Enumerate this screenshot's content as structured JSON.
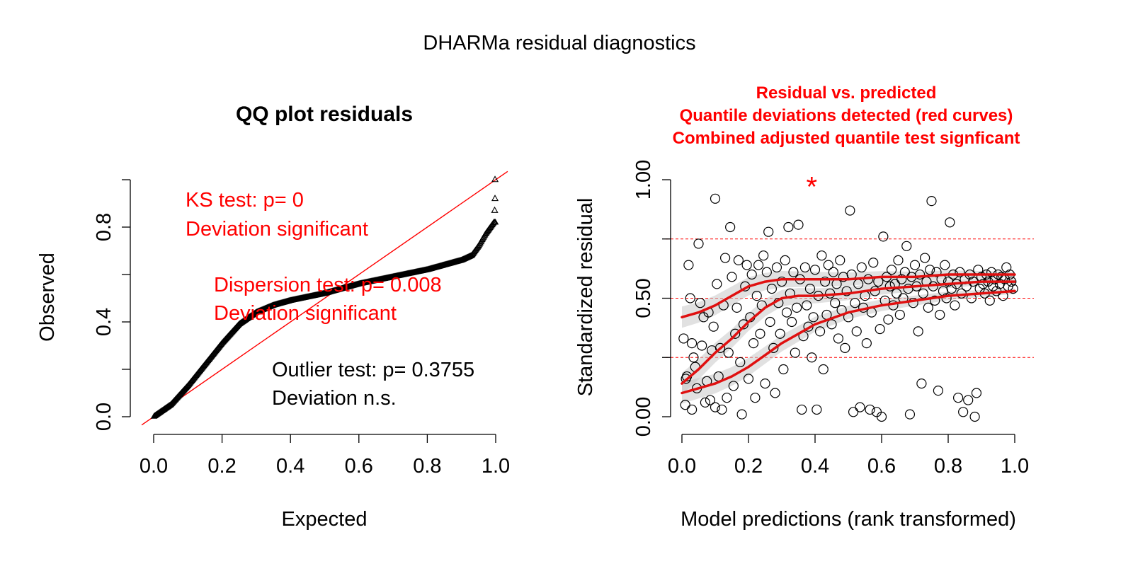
{
  "page": {
    "title": "DHARMa residual diagnostics"
  },
  "colors": {
    "axis": "#000000",
    "red": "#ff0000",
    "curve_red": "#e01010",
    "band_gray": "#c8c8c8",
    "point": "#000000"
  },
  "chart_data": [
    {
      "type": "scatter",
      "title": "QQ plot residuals",
      "xlabel": "Expected",
      "ylabel": "Observed",
      "xlim": [
        0,
        1
      ],
      "ylim": [
        0,
        1
      ],
      "xticks": [
        "0.0",
        "0.2",
        "0.4",
        "0.6",
        "0.8",
        "1.0"
      ],
      "xtick_values": [
        0,
        0.2,
        0.4,
        0.6,
        0.8,
        1.0
      ],
      "yticks": [
        "0.0",
        "0.4",
        "0.8"
      ],
      "yminor_values": [
        0.2,
        0.6,
        1.0
      ],
      "ytick_values": [
        0,
        0.4,
        0.8
      ],
      "marker": "triangle-open",
      "reference_line": {
        "from": [
          0,
          0
        ],
        "to": [
          1,
          1
        ]
      },
      "qq_profile": {
        "expected": [
          0,
          0.02,
          0.05,
          0.1,
          0.15,
          0.2,
          0.25,
          0.3,
          0.35,
          0.4,
          0.5,
          0.6,
          0.7,
          0.8,
          0.9,
          0.93,
          0.95,
          0.97,
          0.985,
          0.995
        ],
        "observed": [
          0,
          0.02,
          0.05,
          0.13,
          0.22,
          0.31,
          0.39,
          0.44,
          0.47,
          0.49,
          0.52,
          0.56,
          0.59,
          0.62,
          0.66,
          0.68,
          0.72,
          0.77,
          0.8,
          0.82
        ]
      },
      "outlier_points": [
        {
          "x": 0.998,
          "y": 1.0
        },
        {
          "x": 0.998,
          "y": 0.92
        },
        {
          "x": 0.997,
          "y": 0.87
        }
      ],
      "annotations": {
        "ks_line1": "KS test: p= 0",
        "ks_line2": "Deviation  significant",
        "disp_line1": "Dispersion test: p= 0.008",
        "disp_line2": "Deviation  significant",
        "outlier_line1": "Outlier test: p= 0.3755",
        "outlier_line2": "Deviation  n.s."
      }
    },
    {
      "type": "scatter",
      "title_lines": [
        "Residual vs. predicted",
        "Quantile deviations detected (red curves)",
        "Combined adjusted quantile test signficant"
      ],
      "xlabel": "Model predictions (rank transformed)",
      "ylabel": "Standardized residual",
      "xlim": [
        0,
        1
      ],
      "ylim": [
        0,
        1
      ],
      "xticks": [
        "0.0",
        "0.2",
        "0.4",
        "0.6",
        "0.8",
        "1.0"
      ],
      "xtick_values": [
        0,
        0.2,
        0.4,
        0.6,
        0.8,
        1.0
      ],
      "yticks": [
        "0.00",
        "0.50",
        "1.00"
      ],
      "ytick_values": [
        0,
        0.5,
        1.0
      ],
      "yminor_values": [
        0.25,
        0.75
      ],
      "reference_hlines": [
        0.25,
        0.5,
        0.75
      ],
      "marker": "circle-open",
      "outlier_marker": {
        "x": 0.39,
        "y": 0.99,
        "symbol": "*"
      },
      "quantile_curves": {
        "x": [
          0,
          0.05,
          0.1,
          0.15,
          0.2,
          0.25,
          0.3,
          0.35,
          0.4,
          0.5,
          0.6,
          0.7,
          0.8,
          0.9,
          1.0
        ],
        "q25": [
          0.1,
          0.12,
          0.14,
          0.17,
          0.21,
          0.26,
          0.31,
          0.35,
          0.39,
          0.44,
          0.47,
          0.49,
          0.51,
          0.52,
          0.53
        ],
        "q50": [
          0.14,
          0.2,
          0.27,
          0.33,
          0.4,
          0.46,
          0.5,
          0.51,
          0.51,
          0.52,
          0.54,
          0.55,
          0.56,
          0.57,
          0.57
        ],
        "q75": [
          0.42,
          0.44,
          0.47,
          0.51,
          0.55,
          0.57,
          0.58,
          0.58,
          0.58,
          0.58,
          0.59,
          0.59,
          0.6,
          0.6,
          0.6
        ]
      },
      "points": [
        [
          0.005,
          0.33
        ],
        [
          0.01,
          0.05
        ],
        [
          0.012,
          0.16
        ],
        [
          0.015,
          0.17
        ],
        [
          0.02,
          0.64
        ],
        [
          0.025,
          0.5
        ],
        [
          0.03,
          0.03
        ],
        [
          0.03,
          0.31
        ],
        [
          0.035,
          0.25
        ],
        [
          0.04,
          0.21
        ],
        [
          0.045,
          0.12
        ],
        [
          0.05,
          0.73
        ],
        [
          0.055,
          0.48
        ],
        [
          0.06,
          0.3
        ],
        [
          0.065,
          0.42
        ],
        [
          0.07,
          0.06
        ],
        [
          0.075,
          0.15
        ],
        [
          0.08,
          0.44
        ],
        [
          0.085,
          0.07
        ],
        [
          0.09,
          0.28
        ],
        [
          0.095,
          0.38
        ],
        [
          0.1,
          0.92
        ],
        [
          0.1,
          0.04
        ],
        [
          0.105,
          0.56
        ],
        [
          0.11,
          0.17
        ],
        [
          0.115,
          0.29
        ],
        [
          0.12,
          0.03
        ],
        [
          0.125,
          0.47
        ],
        [
          0.13,
          0.67
        ],
        [
          0.135,
          0.08
        ],
        [
          0.14,
          0.27
        ],
        [
          0.145,
          0.8
        ],
        [
          0.15,
          0.59
        ],
        [
          0.155,
          0.13
        ],
        [
          0.16,
          0.35
        ],
        [
          0.165,
          0.46
        ],
        [
          0.17,
          0.66
        ],
        [
          0.175,
          0.23
        ],
        [
          0.18,
          0.01
        ],
        [
          0.185,
          0.39
        ],
        [
          0.19,
          0.55
        ],
        [
          0.195,
          0.64
        ],
        [
          0.2,
          0.16
        ],
        [
          0.205,
          0.42
        ],
        [
          0.21,
          0.6
        ],
        [
          0.215,
          0.31
        ],
        [
          0.22,
          0.08
        ],
        [
          0.225,
          0.51
        ],
        [
          0.23,
          0.64
        ],
        [
          0.235,
          0.35
        ],
        [
          0.24,
          0.47
        ],
        [
          0.245,
          0.68
        ],
        [
          0.25,
          0.14
        ],
        [
          0.255,
          0.61
        ],
        [
          0.26,
          0.78
        ],
        [
          0.265,
          0.4
        ],
        [
          0.27,
          0.54
        ],
        [
          0.275,
          0.29
        ],
        [
          0.28,
          0.1
        ],
        [
          0.285,
          0.63
        ],
        [
          0.29,
          0.48
        ],
        [
          0.295,
          0.35
        ],
        [
          0.3,
          0.57
        ],
        [
          0.305,
          0.2
        ],
        [
          0.31,
          0.66
        ],
        [
          0.315,
          0.44
        ],
        [
          0.32,
          0.8
        ],
        [
          0.325,
          0.52
        ],
        [
          0.33,
          0.4
        ],
        [
          0.335,
          0.61
        ],
        [
          0.34,
          0.27
        ],
        [
          0.345,
          0.46
        ],
        [
          0.35,
          0.81
        ],
        [
          0.355,
          0.58
        ],
        [
          0.36,
          0.03
        ],
        [
          0.365,
          0.34
        ],
        [
          0.37,
          0.63
        ],
        [
          0.375,
          0.47
        ],
        [
          0.38,
          0.38
        ],
        [
          0.385,
          0.54
        ],
        [
          0.39,
          0.25
        ],
        [
          0.395,
          0.42
        ],
        [
          0.4,
          0.62
        ],
        [
          0.405,
          0.03
        ],
        [
          0.41,
          0.51
        ],
        [
          0.415,
          0.36
        ],
        [
          0.42,
          0.68
        ],
        [
          0.425,
          0.2
        ],
        [
          0.43,
          0.57
        ],
        [
          0.435,
          0.43
        ],
        [
          0.44,
          0.64
        ],
        [
          0.445,
          0.52
        ],
        [
          0.45,
          0.39
        ],
        [
          0.455,
          0.61
        ],
        [
          0.46,
          0.48
        ],
        [
          0.465,
          0.56
        ],
        [
          0.47,
          0.33
        ],
        [
          0.475,
          0.66
        ],
        [
          0.48,
          0.45
        ],
        [
          0.485,
          0.59
        ],
        [
          0.49,
          0.29
        ],
        [
          0.495,
          0.53
        ],
        [
          0.5,
          0.42
        ],
        [
          0.505,
          0.87
        ],
        [
          0.51,
          0.6
        ],
        [
          0.515,
          0.02
        ],
        [
          0.52,
          0.48
        ],
        [
          0.525,
          0.36
        ],
        [
          0.53,
          0.56
        ],
        [
          0.535,
          0.04
        ],
        [
          0.54,
          0.63
        ],
        [
          0.545,
          0.46
        ],
        [
          0.55,
          0.51
        ],
        [
          0.555,
          0.31
        ],
        [
          0.56,
          0.58
        ],
        [
          0.565,
          0.03
        ],
        [
          0.57,
          0.44
        ],
        [
          0.575,
          0.65
        ],
        [
          0.58,
          0.53
        ],
        [
          0.585,
          0.02
        ],
        [
          0.59,
          0.57
        ],
        [
          0.595,
          0.37
        ],
        [
          0.6,
          0.0
        ],
        [
          0.605,
          0.76
        ],
        [
          0.61,
          0.49
        ],
        [
          0.615,
          0.59
        ],
        [
          0.62,
          0.41
        ],
        [
          0.625,
          0.55
        ],
        [
          0.63,
          0.62
        ],
        [
          0.635,
          0.47
        ],
        [
          0.64,
          0.56
        ],
        [
          0.645,
          0.52
        ],
        [
          0.65,
          0.66
        ],
        [
          0.655,
          0.43
        ],
        [
          0.66,
          0.58
        ],
        [
          0.665,
          0.5
        ],
        [
          0.67,
          0.61
        ],
        [
          0.675,
          0.72
        ],
        [
          0.68,
          0.54
        ],
        [
          0.685,
          0.01
        ],
        [
          0.69,
          0.59
        ],
        [
          0.695,
          0.48
        ],
        [
          0.7,
          0.64
        ],
        [
          0.705,
          0.55
        ],
        [
          0.71,
          0.36
        ],
        [
          0.715,
          0.6
        ],
        [
          0.72,
          0.14
        ],
        [
          0.725,
          0.52
        ],
        [
          0.73,
          0.67
        ],
        [
          0.735,
          0.57
        ],
        [
          0.74,
          0.46
        ],
        [
          0.745,
          0.62
        ],
        [
          0.75,
          0.91
        ],
        [
          0.755,
          0.55
        ],
        [
          0.76,
          0.49
        ],
        [
          0.765,
          0.61
        ],
        [
          0.77,
          0.11
        ],
        [
          0.775,
          0.43
        ],
        [
          0.78,
          0.58
        ],
        [
          0.785,
          0.53
        ],
        [
          0.79,
          0.64
        ],
        [
          0.795,
          0.5
        ],
        [
          0.8,
          0.57
        ],
        [
          0.805,
          0.82
        ],
        [
          0.81,
          0.54
        ],
        [
          0.815,
          0.6
        ],
        [
          0.82,
          0.47
        ],
        [
          0.825,
          0.56
        ],
        [
          0.83,
          0.08
        ],
        [
          0.835,
          0.61
        ],
        [
          0.84,
          0.52
        ],
        [
          0.845,
          0.02
        ],
        [
          0.85,
          0.58
        ],
        [
          0.855,
          0.55
        ],
        [
          0.86,
          0.07
        ],
        [
          0.865,
          0.6
        ],
        [
          0.87,
          0.5
        ],
        [
          0.875,
          0.57
        ],
        [
          0.88,
          0.0
        ],
        [
          0.885,
          0.1
        ],
        [
          0.89,
          0.62
        ],
        [
          0.895,
          0.54
        ],
        [
          0.9,
          0.59
        ],
        [
          0.905,
          0.56
        ],
        [
          0.91,
          0.52
        ],
        [
          0.915,
          0.6
        ],
        [
          0.92,
          0.57
        ],
        [
          0.925,
          0.49
        ],
        [
          0.93,
          0.61
        ],
        [
          0.935,
          0.55
        ],
        [
          0.94,
          0.58
        ],
        [
          0.945,
          0.53
        ],
        [
          0.95,
          0.6
        ],
        [
          0.955,
          0.56
        ],
        [
          0.96,
          0.59
        ],
        [
          0.965,
          0.51
        ],
        [
          0.97,
          0.58
        ],
        [
          0.975,
          0.63
        ],
        [
          0.98,
          0.55
        ],
        [
          0.985,
          0.6
        ],
        [
          0.99,
          0.57
        ],
        [
          0.995,
          0.54
        ]
      ]
    }
  ]
}
